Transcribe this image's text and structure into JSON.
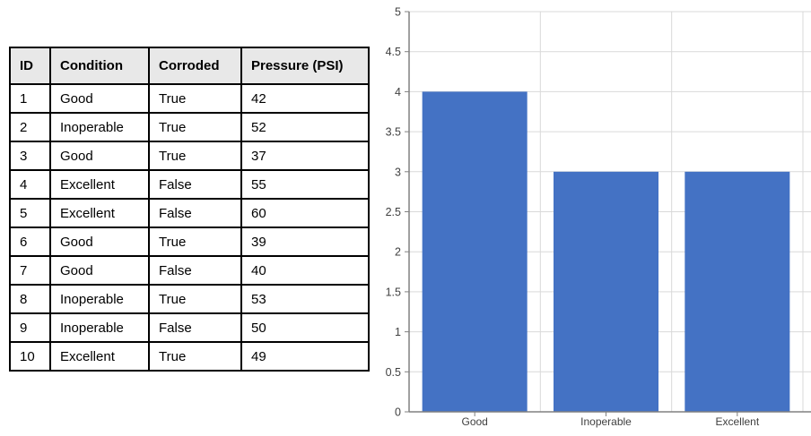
{
  "table": {
    "columns": [
      "ID",
      "Condition",
      "Corroded",
      "Pressure (PSI)"
    ],
    "rows": [
      [
        "1",
        "Good",
        "True",
        "42"
      ],
      [
        "2",
        "Inoperable",
        "True",
        "52"
      ],
      [
        "3",
        "Good",
        "True",
        "37"
      ],
      [
        "4",
        "Excellent",
        "False",
        "55"
      ],
      [
        "5",
        "Excellent",
        "False",
        "60"
      ],
      [
        "6",
        "Good",
        "True",
        "39"
      ],
      [
        "7",
        "Good",
        "False",
        "40"
      ],
      [
        "8",
        "Inoperable",
        "True",
        "53"
      ],
      [
        "9",
        "Inoperable",
        "False",
        "50"
      ],
      [
        "10",
        "Excellent",
        "True",
        "49"
      ]
    ],
    "header_bg": "#e8e8e8",
    "border_color": "#000000"
  },
  "chart_data": {
    "type": "bar",
    "categories": [
      "Good",
      "Inoperable",
      "Excellent"
    ],
    "values": [
      4,
      3,
      3
    ],
    "title": "",
    "xlabel": "",
    "ylabel": "",
    "ylim": [
      0,
      5
    ],
    "ytick_step": 0.5,
    "ytick_labels": [
      "0",
      "0.5",
      "1",
      "1.5",
      "2",
      "2.5",
      "3",
      "3.5",
      "4",
      "4.5",
      "5"
    ],
    "grid": true,
    "legend": false,
    "bar_color": "#4472c4",
    "gridline_color": "#d9d9d9",
    "axis_color": "#808080",
    "label_color": "#404040"
  }
}
